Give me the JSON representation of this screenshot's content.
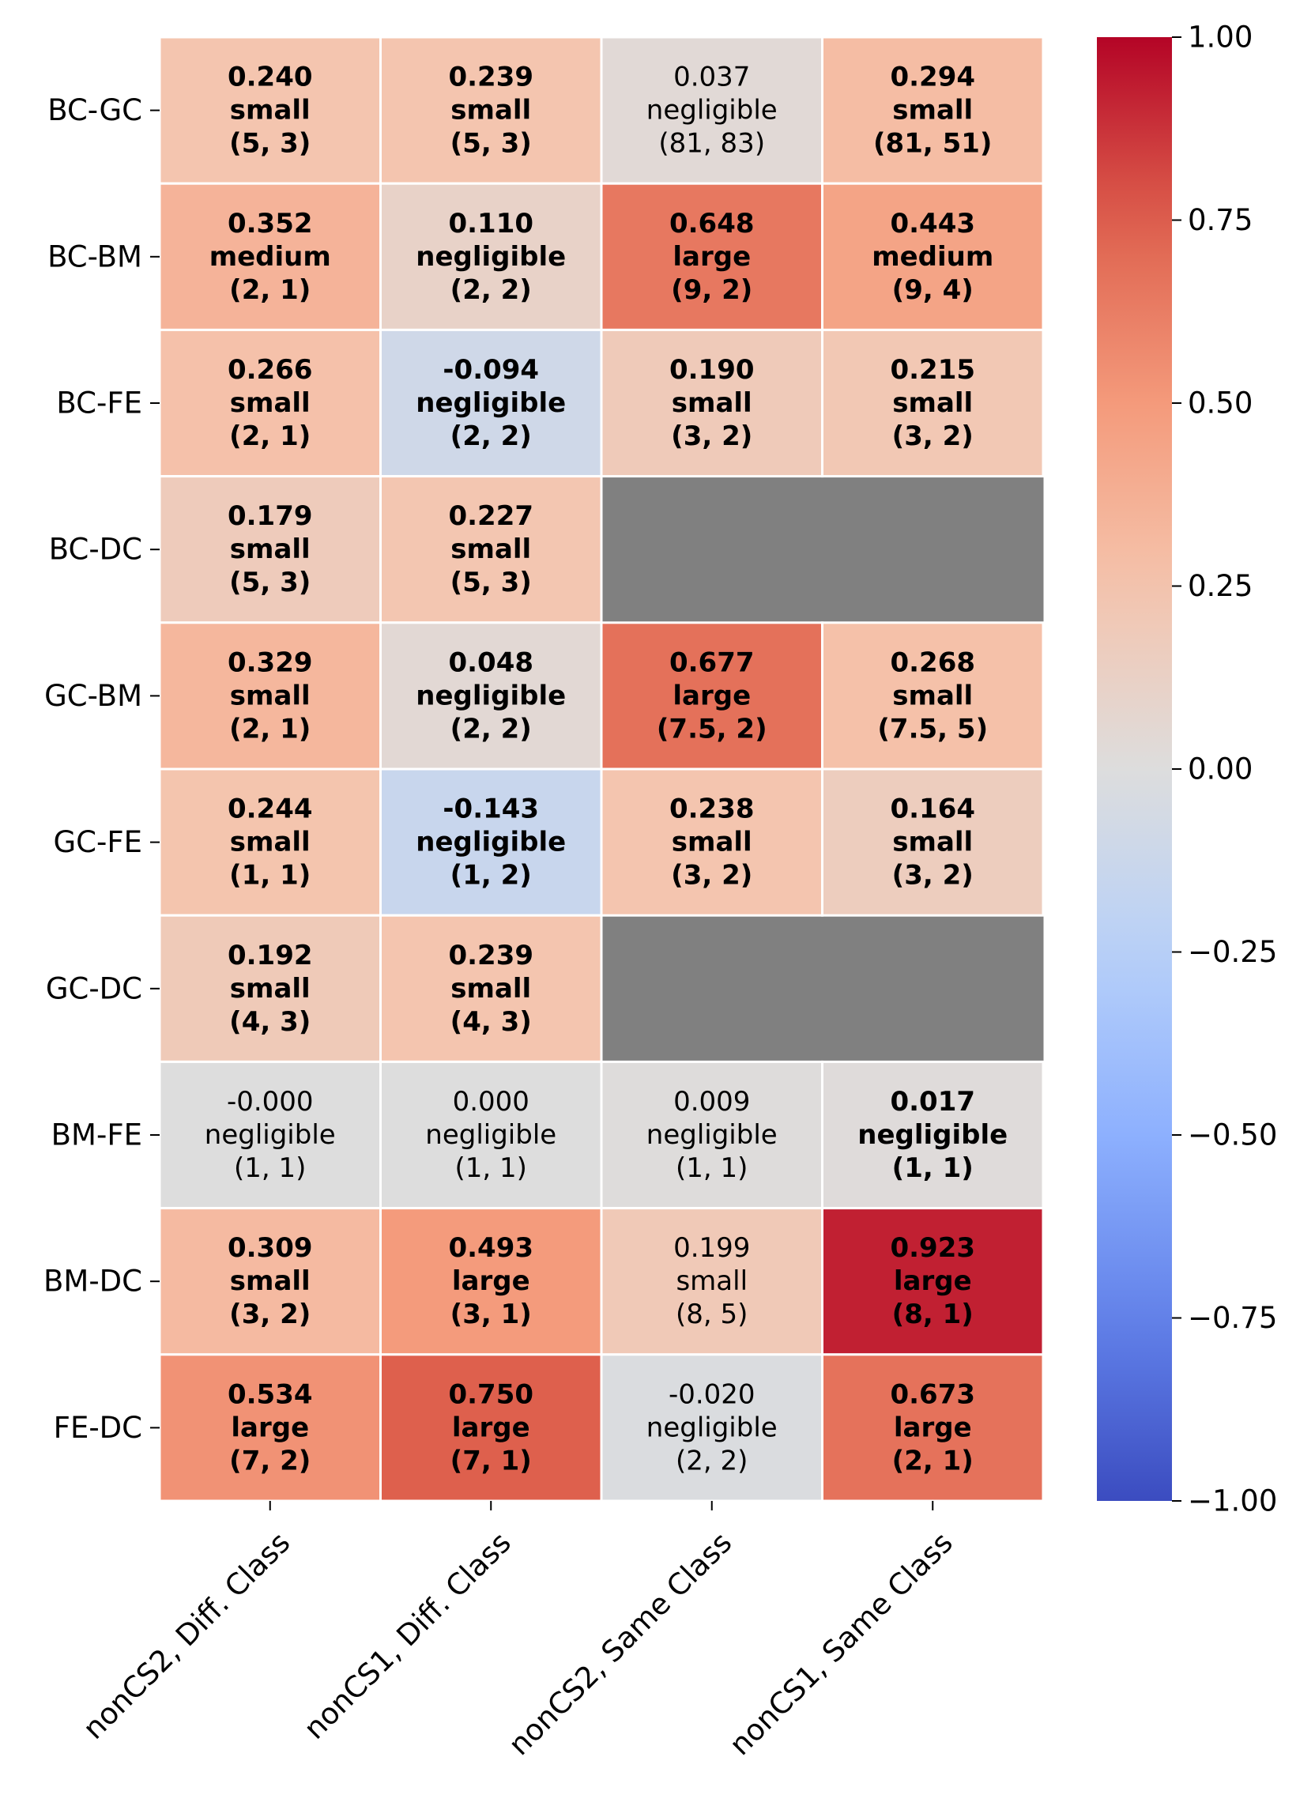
{
  "chart_data": {
    "type": "heatmap",
    "title": "",
    "xlabel": "",
    "ylabel": "",
    "rows": [
      "BC-GC",
      "BC-BM",
      "BC-FE",
      "BC-DC",
      "GC-BM",
      "GC-FE",
      "GC-DC",
      "BM-FE",
      "BM-DC",
      "FE-DC"
    ],
    "columns": [
      "nonCS2, Diff. Class",
      "nonCS1, Diff. Class",
      "nonCS2, Same Class",
      "nonCS1, Same Class"
    ],
    "cells": [
      [
        {
          "value": 0.24,
          "label": "0.240",
          "effect": "small",
          "medians": "(5, 3)",
          "bold": true
        },
        {
          "value": 0.239,
          "label": "0.239",
          "effect": "small",
          "medians": "(5, 3)",
          "bold": true
        },
        {
          "value": 0.037,
          "label": "0.037",
          "effect": "negligible",
          "medians": "(81, 83)",
          "bold": false
        },
        {
          "value": 0.294,
          "label": "0.294",
          "effect": "small",
          "medians": "(81, 51)",
          "bold": true
        }
      ],
      [
        {
          "value": 0.352,
          "label": "0.352",
          "effect": "medium",
          "medians": "(2, 1)",
          "bold": true
        },
        {
          "value": 0.11,
          "label": "0.110",
          "effect": "negligible",
          "medians": "(2, 2)",
          "bold": true
        },
        {
          "value": 0.648,
          "label": "0.648",
          "effect": "large",
          "medians": "(9, 2)",
          "bold": true
        },
        {
          "value": 0.443,
          "label": "0.443",
          "effect": "medium",
          "medians": "(9, 4)",
          "bold": true
        }
      ],
      [
        {
          "value": 0.266,
          "label": "0.266",
          "effect": "small",
          "medians": "(2, 1)",
          "bold": true
        },
        {
          "value": -0.094,
          "label": "-0.094",
          "effect": "negligible",
          "medians": "(2, 2)",
          "bold": true
        },
        {
          "value": 0.19,
          "label": "0.190",
          "effect": "small",
          "medians": "(3, 2)",
          "bold": true
        },
        {
          "value": 0.215,
          "label": "0.215",
          "effect": "small",
          "medians": "(3, 2)",
          "bold": true
        }
      ],
      [
        {
          "value": 0.179,
          "label": "0.179",
          "effect": "small",
          "medians": "(5, 3)",
          "bold": true
        },
        {
          "value": 0.227,
          "label": "0.227",
          "effect": "small",
          "medians": "(5, 3)",
          "bold": true
        },
        null,
        null
      ],
      [
        {
          "value": 0.329,
          "label": "0.329",
          "effect": "small",
          "medians": "(2, 1)",
          "bold": true
        },
        {
          "value": 0.048,
          "label": "0.048",
          "effect": "negligible",
          "medians": "(2, 2)",
          "bold": true
        },
        {
          "value": 0.677,
          "label": "0.677",
          "effect": "large",
          "medians": "(7.5, 2)",
          "bold": true
        },
        {
          "value": 0.268,
          "label": "0.268",
          "effect": "small",
          "medians": "(7.5, 5)",
          "bold": true
        }
      ],
      [
        {
          "value": 0.244,
          "label": "0.244",
          "effect": "small",
          "medians": "(1, 1)",
          "bold": true
        },
        {
          "value": -0.143,
          "label": "-0.143",
          "effect": "negligible",
          "medians": "(1, 2)",
          "bold": true
        },
        {
          "value": 0.238,
          "label": "0.238",
          "effect": "small",
          "medians": "(3, 2)",
          "bold": true
        },
        {
          "value": 0.164,
          "label": "0.164",
          "effect": "small",
          "medians": "(3, 2)",
          "bold": true
        }
      ],
      [
        {
          "value": 0.192,
          "label": "0.192",
          "effect": "small",
          "medians": "(4, 3)",
          "bold": true
        },
        {
          "value": 0.239,
          "label": "0.239",
          "effect": "small",
          "medians": "(4, 3)",
          "bold": true
        },
        null,
        null
      ],
      [
        {
          "value": -0.0,
          "label": "-0.000",
          "effect": "negligible",
          "medians": "(1, 1)",
          "bold": false
        },
        {
          "value": 0.0,
          "label": "0.000",
          "effect": "negligible",
          "medians": "(1, 1)",
          "bold": false
        },
        {
          "value": 0.009,
          "label": "0.009",
          "effect": "negligible",
          "medians": "(1, 1)",
          "bold": false
        },
        {
          "value": 0.017,
          "label": "0.017",
          "effect": "negligible",
          "medians": "(1, 1)",
          "bold": true
        }
      ],
      [
        {
          "value": 0.309,
          "label": "0.309",
          "effect": "small",
          "medians": "(3, 2)",
          "bold": true
        },
        {
          "value": 0.493,
          "label": "0.493",
          "effect": "large",
          "medians": "(3, 1)",
          "bold": true
        },
        {
          "value": 0.199,
          "label": "0.199",
          "effect": "small",
          "medians": "(8, 5)",
          "bold": false
        },
        {
          "value": 0.923,
          "label": "0.923",
          "effect": "large",
          "medians": "(8, 1)",
          "bold": true
        }
      ],
      [
        {
          "value": 0.534,
          "label": "0.534",
          "effect": "large",
          "medians": "(7, 2)",
          "bold": true
        },
        {
          "value": 0.75,
          "label": "0.750",
          "effect": "large",
          "medians": "(7, 1)",
          "bold": true
        },
        {
          "value": -0.02,
          "label": "-0.020",
          "effect": "negligible",
          "medians": "(2, 2)",
          "bold": false
        },
        {
          "value": 0.673,
          "label": "0.673",
          "effect": "large",
          "medians": "(2, 1)",
          "bold": true
        }
      ]
    ],
    "colorbar": {
      "vmin": -1.0,
      "vmax": 1.0,
      "ticks": [
        1.0,
        0.75,
        0.5,
        0.25,
        0.0,
        -0.25,
        -0.5,
        -0.75,
        -1.0
      ],
      "tick_labels": [
        "1.00",
        "0.75",
        "0.50",
        "0.25",
        "0.00",
        "−0.25",
        "−0.50",
        "−0.75",
        "−1.00"
      ],
      "colormap": "coolwarm",
      "low_color": "#3b4cc0",
      "mid_color": "#dddddd",
      "high_color": "#b40426"
    },
    "missing_color": "#808080",
    "grid": false,
    "legend": "colorbar-right"
  }
}
